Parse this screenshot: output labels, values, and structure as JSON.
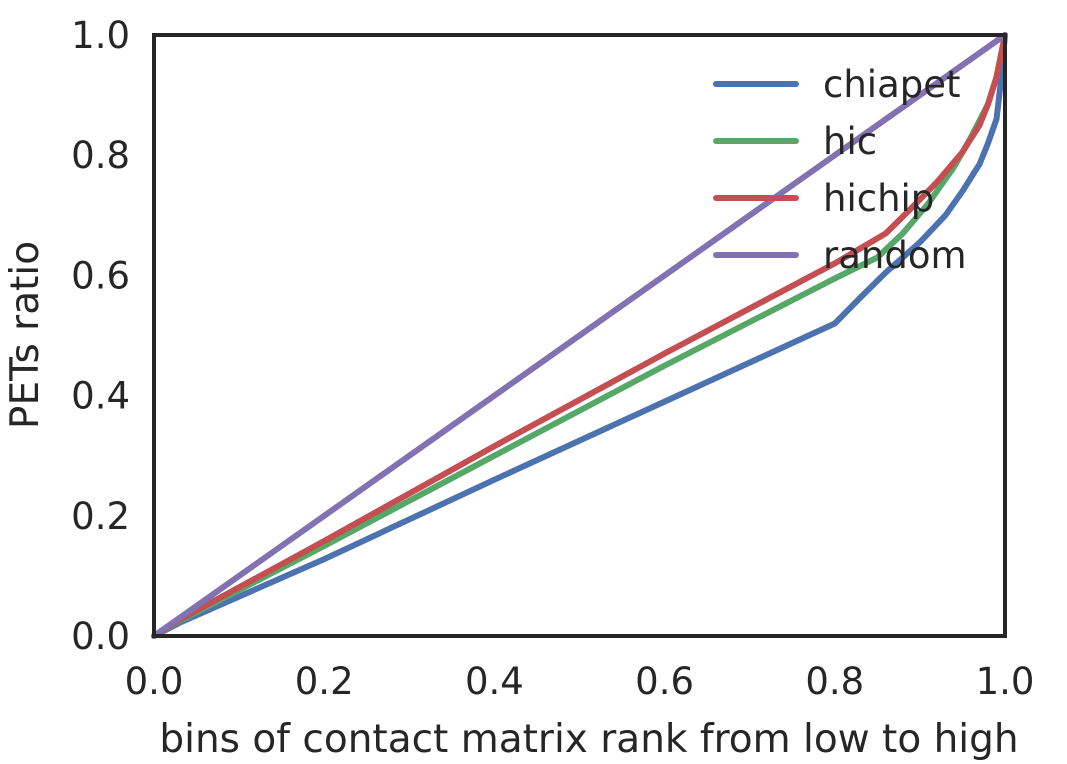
{
  "chart_data": {
    "type": "line",
    "title": "",
    "xlabel": "bins of contact matrix rank from low to high",
    "ylabel": "PETs ratio",
    "xlim": [
      0.0,
      1.0
    ],
    "ylim": [
      0.0,
      1.0
    ],
    "xticks": [
      "0.0",
      "0.2",
      "0.4",
      "0.6",
      "0.8",
      "1.0"
    ],
    "yticks": [
      "0.0",
      "0.2",
      "0.4",
      "0.6",
      "0.8",
      "1.0"
    ],
    "grid": false,
    "legend_position": "top-right",
    "series": [
      {
        "name": "chiapet",
        "color": "#4c72b0",
        "x": [
          0.0,
          0.03,
          0.2,
          0.4,
          0.6,
          0.8,
          0.83,
          0.86,
          0.9,
          0.93,
          0.95,
          0.97,
          0.98,
          0.99,
          0.995,
          1.0
        ],
        "y": [
          0.0,
          0.022,
          0.128,
          0.26,
          0.39,
          0.52,
          0.563,
          0.605,
          0.655,
          0.7,
          0.74,
          0.785,
          0.82,
          0.86,
          0.92,
          1.0
        ]
      },
      {
        "name": "hic",
        "color": "#55a868",
        "x": [
          0.0,
          0.03,
          0.2,
          0.4,
          0.6,
          0.8,
          0.85,
          0.88,
          0.91,
          0.94,
          0.96,
          0.98,
          0.99,
          1.0
        ],
        "y": [
          0.0,
          0.025,
          0.15,
          0.3,
          0.45,
          0.595,
          0.63,
          0.67,
          0.72,
          0.78,
          0.83,
          0.885,
          0.93,
          1.0
        ]
      },
      {
        "name": "hichip",
        "color": "#c44e52",
        "x": [
          0.0,
          0.03,
          0.2,
          0.4,
          0.6,
          0.8,
          0.86,
          0.89,
          0.92,
          0.95,
          0.97,
          0.98,
          0.99,
          1.0
        ],
        "y": [
          0.0,
          0.027,
          0.158,
          0.316,
          0.47,
          0.62,
          0.67,
          0.712,
          0.755,
          0.805,
          0.85,
          0.885,
          0.93,
          1.0
        ]
      },
      {
        "name": "random",
        "color": "#8172b2",
        "x": [
          0.0,
          1.0
        ],
        "y": [
          0.0,
          1.0
        ]
      }
    ]
  }
}
